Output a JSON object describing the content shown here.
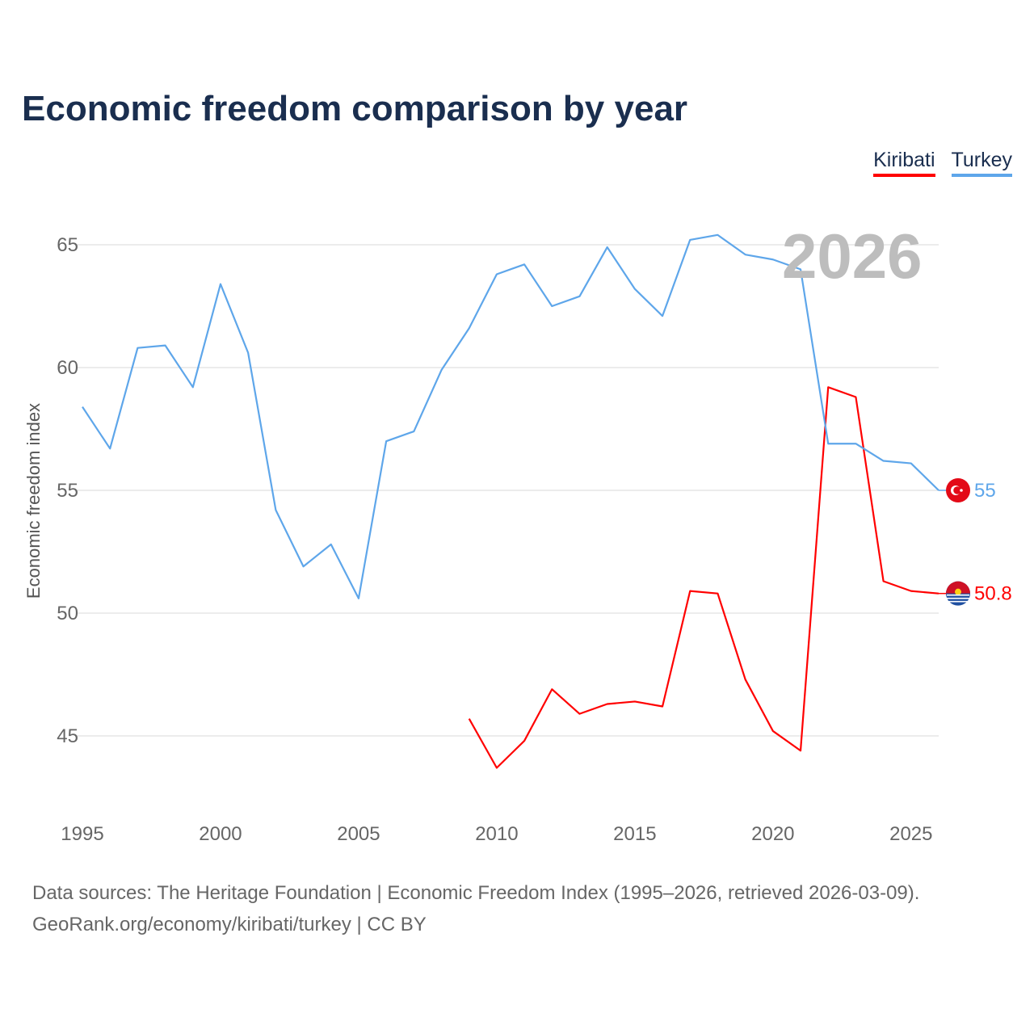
{
  "chart_data": {
    "type": "line",
    "title": "Economic freedom comparison by year",
    "ylabel": "Economic freedom index",
    "xlabel": "",
    "xlim": [
      1995,
      2026
    ],
    "ylim": [
      42,
      66.5
    ],
    "x_ticks": [
      1995,
      2000,
      2005,
      2010,
      2015,
      2020,
      2025
    ],
    "y_ticks": [
      45,
      50,
      55,
      60,
      65
    ],
    "grid": true,
    "legend_placement": "top-right",
    "current_year_label": "2026",
    "series": [
      {
        "name": "Kiribati",
        "color": "#ff0000",
        "end_label": "50.8",
        "x": [
          2009,
          2010,
          2011,
          2012,
          2013,
          2014,
          2015,
          2016,
          2017,
          2018,
          2019,
          2020,
          2021,
          2022,
          2023,
          2024,
          2025,
          2026
        ],
        "values": [
          45.7,
          43.7,
          44.8,
          46.9,
          45.9,
          46.3,
          46.4,
          46.2,
          50.9,
          50.8,
          47.3,
          45.2,
          44.4,
          59.2,
          58.8,
          51.3,
          50.9,
          50.8
        ]
      },
      {
        "name": "Turkey",
        "color": "#5ea6ea",
        "end_label": "55",
        "x": [
          1995,
          1996,
          1997,
          1998,
          1999,
          2000,
          2001,
          2002,
          2003,
          2004,
          2005,
          2006,
          2007,
          2008,
          2009,
          2010,
          2011,
          2012,
          2013,
          2014,
          2015,
          2016,
          2017,
          2018,
          2019,
          2020,
          2021,
          2022,
          2023,
          2024,
          2025,
          2026
        ],
        "values": [
          58.4,
          56.7,
          60.8,
          60.9,
          59.2,
          63.4,
          60.6,
          54.2,
          51.9,
          52.8,
          50.6,
          57.0,
          57.4,
          59.9,
          61.6,
          63.8,
          64.2,
          62.5,
          62.9,
          64.9,
          63.2,
          62.1,
          65.2,
          65.4,
          64.6,
          64.4,
          64.0,
          56.9,
          56.9,
          56.2,
          56.1,
          55.0
        ]
      }
    ]
  },
  "footer": {
    "line1": "Data sources: The Heritage Foundation | Economic Freedom Index (1995–2026, retrieved 2026-03-09).",
    "line2": "GeoRank.org/economy/kiribati/turkey | CC BY"
  }
}
